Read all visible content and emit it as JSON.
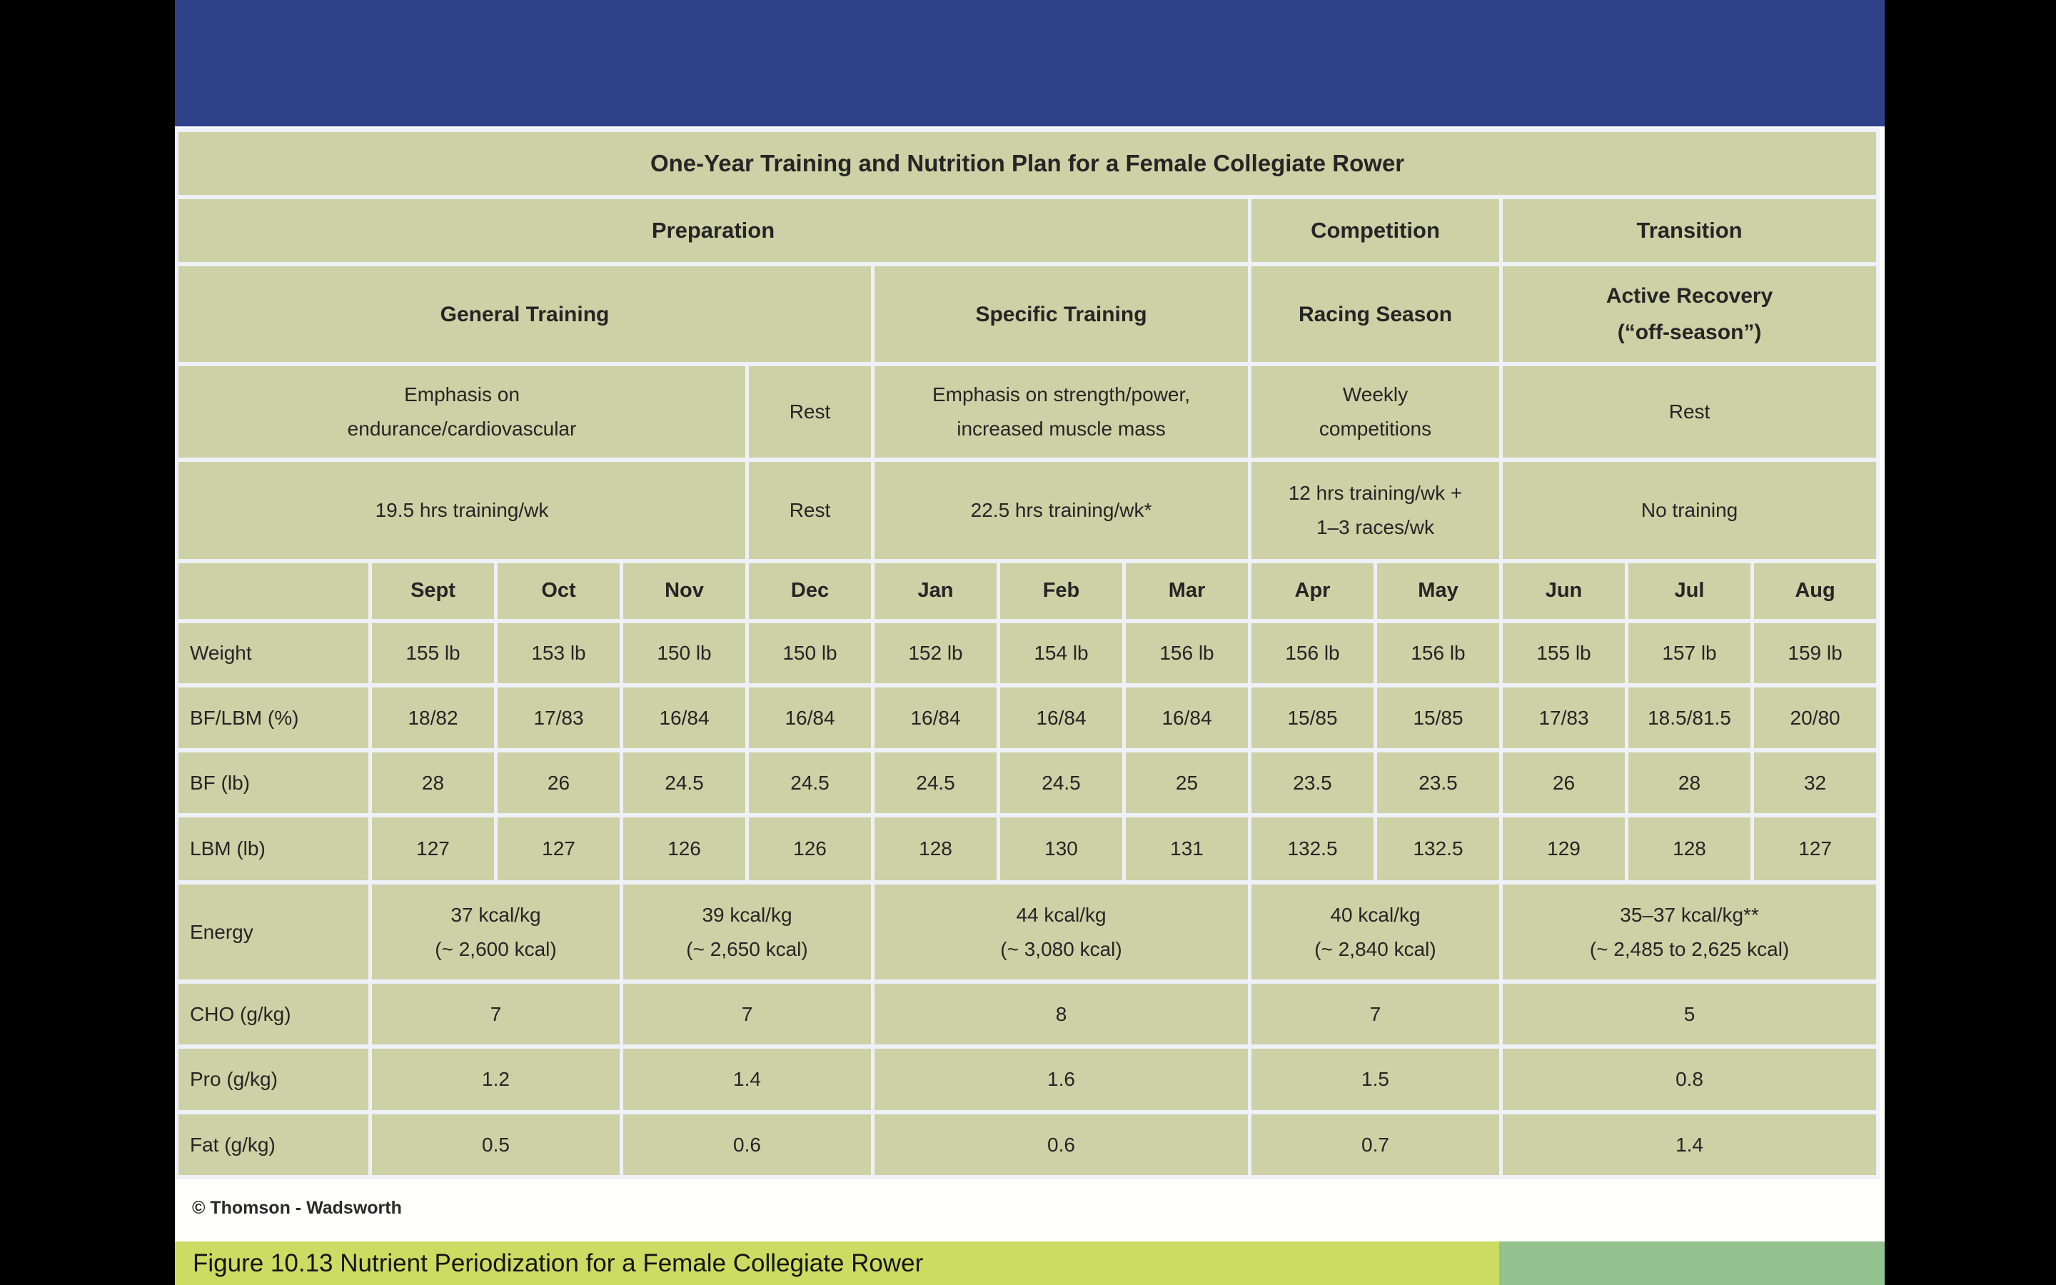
{
  "colors": {
    "letterbox_black": "#000000",
    "slide_white": "#fefefb",
    "header_blue": "#2e4189",
    "table_cell_olive": "#cdd1a5",
    "grid_white": "#eef1f8",
    "caption_yellow": "#ccdc62",
    "caption_green": "#93c28e"
  },
  "slide": {
    "table": {
      "title": "One-Year Training and Nutrition Plan for a Female Collegiate Rower",
      "phases": [
        "Preparation",
        "Competition",
        "Transition"
      ],
      "subphases": [
        "General Training",
        "Specific Training",
        "Racing Season",
        "Active Recovery\n(“off-season”)"
      ],
      "focus": [
        "Emphasis on\nendurance/cardiovascular",
        "Rest",
        "Emphasis on strength/power,\nincreased muscle mass",
        "Weekly\ncompetitions",
        "Rest"
      ],
      "hours": [
        "19.5 hrs training/wk",
        "Rest",
        "22.5 hrs training/wk*",
        "12 hrs training/wk +\n1–3 races/wk",
        "No training"
      ],
      "months": [
        "Sept",
        "Oct",
        "Nov",
        "Dec",
        "Jan",
        "Feb",
        "Mar",
        "Apr",
        "May",
        "Jun",
        "Jul",
        "Aug"
      ],
      "rows": {
        "weight": {
          "label": "Weight",
          "values": [
            "155 lb",
            "153 lb",
            "150 lb",
            "150 lb",
            "152 lb",
            "154 lb",
            "156 lb",
            "156 lb",
            "156 lb",
            "155 lb",
            "157 lb",
            "159 lb"
          ]
        },
        "bf_lbm_pct": {
          "label": "BF/LBM (%)",
          "values": [
            "18/82",
            "17/83",
            "16/84",
            "16/84",
            "16/84",
            "16/84",
            "16/84",
            "15/85",
            "15/85",
            "17/83",
            "18.5/81.5",
            "20/80"
          ]
        },
        "bf_lb": {
          "label": "BF (lb)",
          "values": [
            "28",
            "26",
            "24.5",
            "24.5",
            "24.5",
            "24.5",
            "25",
            "23.5",
            "23.5",
            "26",
            "28",
            "32"
          ]
        },
        "lbm_lb": {
          "label": "LBM (lb)",
          "values": [
            "127",
            "127",
            "126",
            "126",
            "128",
            "130",
            "131",
            "132.5",
            "132.5",
            "129",
            "128",
            "127"
          ]
        },
        "energy": {
          "label": "Energy",
          "values": [
            "37 kcal/kg\n(~ 2,600 kcal)",
            "39 kcal/kg\n(~ 2,650 kcal)",
            "44 kcal/kg\n(~ 3,080 kcal)",
            "40 kcal/kg\n(~ 2,840 kcal)",
            "35–37 kcal/kg**\n(~ 2,485 to 2,625 kcal)"
          ]
        },
        "cho": {
          "label": "CHO (g/kg)",
          "values": [
            "7",
            "7",
            "8",
            "7",
            "5"
          ]
        },
        "pro": {
          "label": "Pro (g/kg)",
          "values": [
            "1.2",
            "1.4",
            "1.6",
            "1.5",
            "0.8"
          ]
        },
        "fat": {
          "label": "Fat (g/kg)",
          "values": [
            "0.5",
            "0.6",
            "0.6",
            "0.7",
            "1.4"
          ]
        }
      }
    },
    "footer_credit": "© Thomson - Wadsworth",
    "caption": "Figure 10.13 Nutrient Periodization for a Female Collegiate Rower"
  }
}
